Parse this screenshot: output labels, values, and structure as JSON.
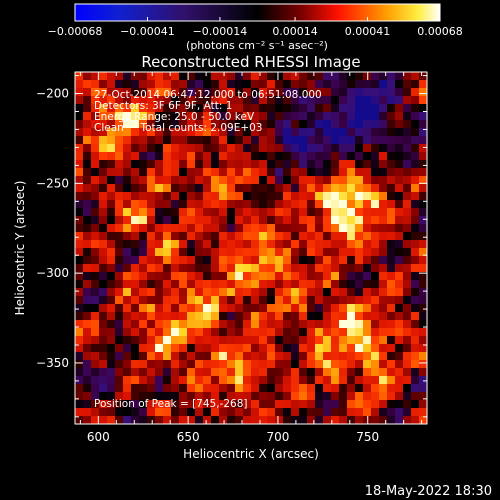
{
  "chart_data": {
    "type": "heatmap",
    "title": "Reconstructed RHESSI Image",
    "xlabel": "Heliocentric X (arcsec)",
    "ylabel": "Heliocentric Y (arcsec)",
    "xlim": [
      587,
      783
    ],
    "ylim": [
      -384,
      -188
    ],
    "x_ticks": [
      600,
      650,
      700,
      750
    ],
    "x_tick_labels": [
      "600",
      "650",
      "700",
      "750"
    ],
    "y_ticks": [
      -200,
      -250,
      -300,
      -350
    ],
    "y_tick_labels": [
      "−200",
      "−250",
      "−300",
      "−350"
    ],
    "colorbar": {
      "min": -0.00068,
      "max": 0.00068,
      "ticks": [
        -0.00068,
        -0.00041,
        -0.00014,
        0.00014,
        0.00041,
        0.00068
      ],
      "tick_labels": [
        "−0.00068",
        "−0.00041",
        "−0.00014",
        "0.00014",
        "0.00041",
        "0.00068"
      ],
      "unit_label": "(photons cm⁻² s⁻¹ asec⁻²)"
    },
    "peak": [
      745,
      -268
    ],
    "colormap": [
      "#0000ff",
      "#000000",
      "#ff0000",
      "#ffff00",
      "#ffffff"
    ]
  },
  "annotations": {
    "time_range": "27-Oct-2014 06:47:12.000 to 06:51:08.000",
    "detectors": "Detectors: 3F 6F 9F, Att: 1",
    "energy_range": "Energy Range: 25.0 - 50.0 keV",
    "method_counts": "Clean     Total counts: 2.09E+03",
    "peak_position": "Position of Peak = [745,-268]"
  },
  "footer": {
    "timestamp": "18-May-2022 18:30"
  }
}
